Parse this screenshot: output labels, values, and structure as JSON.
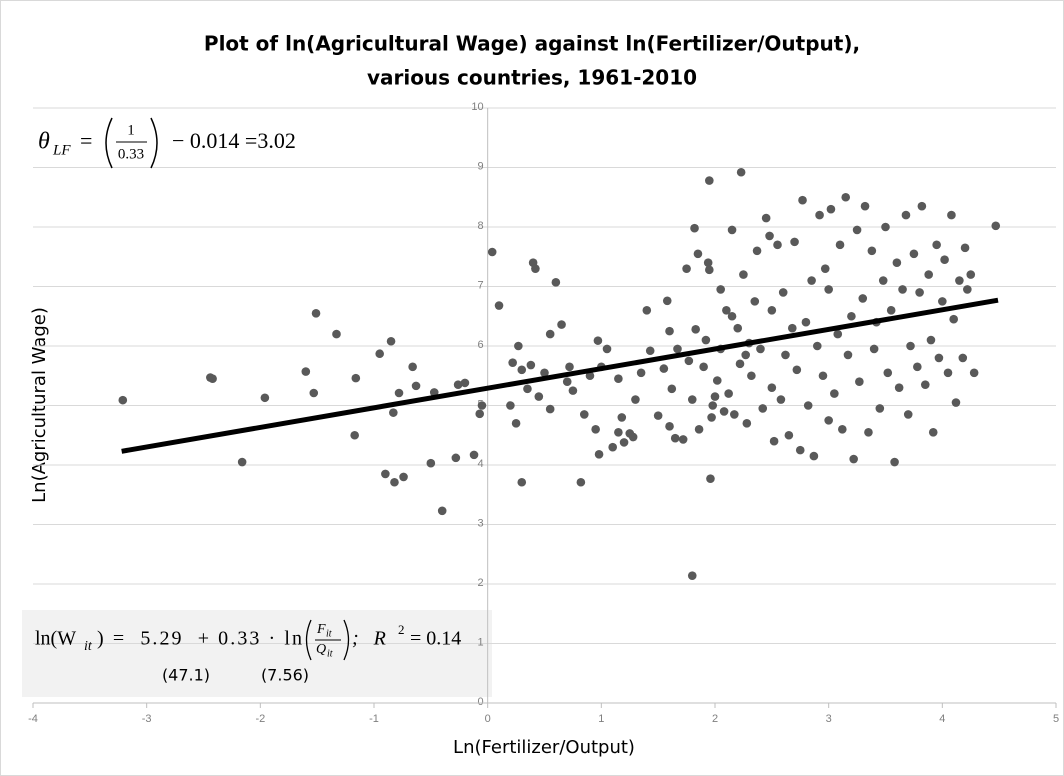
{
  "chart_data": {
    "type": "scatter",
    "title": [
      "Plot of ln(Agricultural Wage) against ln(Fertilizer/Output),",
      "various countries, 1961-2010"
    ],
    "x_label": "Ln(Fertilizer/Output)",
    "y_label": "Ln(Agricultural Wage)",
    "xlim": [
      -4,
      5
    ],
    "xticks": [
      -4,
      -3,
      -2,
      -1,
      0,
      1,
      2,
      3,
      4,
      5
    ],
    "ylim": [
      0,
      10
    ],
    "yticks": [
      0,
      1,
      2,
      3,
      4,
      5,
      6,
      7,
      8,
      9,
      10
    ],
    "grid": true,
    "series": [
      {
        "color": "#595959",
        "x": [
          -3.21,
          -2.44,
          -2.42,
          -2.16,
          -1.96,
          -1.6,
          -1.53,
          -1.51,
          -1.33,
          -1.16,
          -1.17,
          -0.95,
          -0.9,
          -0.85,
          -0.83,
          -0.82,
          -0.78,
          -0.74,
          -0.66,
          -0.63,
          -0.5,
          -0.47,
          -0.4,
          -0.28,
          -0.26,
          -0.2,
          -0.12,
          -0.07,
          -0.05,
          0.04,
          0.1,
          0.2,
          0.22,
          0.25,
          0.27,
          0.3,
          0.3,
          0.35,
          0.38,
          0.4,
          0.42,
          0.45,
          0.5,
          0.55,
          0.55,
          0.6,
          0.65,
          0.7,
          0.72,
          0.75,
          0.82,
          0.85,
          0.9,
          0.95,
          0.97,
          0.98,
          1.0,
          1.05,
          1.1,
          1.15,
          1.15,
          1.18,
          1.2,
          1.25,
          1.28,
          1.3,
          1.35,
          1.4,
          1.43,
          1.5,
          1.55,
          1.58,
          1.6,
          1.6,
          1.62,
          1.65,
          1.67,
          1.72,
          1.75,
          1.77,
          1.8,
          1.8,
          1.82,
          1.83,
          1.85,
          1.86,
          1.9,
          1.92,
          1.94,
          1.95,
          1.95,
          1.96,
          1.97,
          1.98,
          2.0,
          2.02,
          2.05,
          2.05,
          2.08,
          2.1,
          2.12,
          2.15,
          2.15,
          2.17,
          2.2,
          2.22,
          2.23,
          2.25,
          2.27,
          2.28,
          2.3,
          2.32,
          2.35,
          2.37,
          2.4,
          2.42,
          2.45,
          2.48,
          2.5,
          2.5,
          2.52,
          2.55,
          2.58,
          2.6,
          2.62,
          2.65,
          2.68,
          2.7,
          2.72,
          2.75,
          2.77,
          2.8,
          2.82,
          2.85,
          2.87,
          2.9,
          2.92,
          2.95,
          2.97,
          3.0,
          3.0,
          3.02,
          3.05,
          3.08,
          3.1,
          3.12,
          3.15,
          3.17,
          3.2,
          3.22,
          3.25,
          3.27,
          3.3,
          3.32,
          3.35,
          3.38,
          3.4,
          3.42,
          3.45,
          3.48,
          3.5,
          3.52,
          3.55,
          3.58,
          3.6,
          3.62,
          3.65,
          3.68,
          3.7,
          3.72,
          3.75,
          3.78,
          3.8,
          3.82,
          3.85,
          3.88,
          3.9,
          3.92,
          3.95,
          3.97,
          4.0,
          4.02,
          4.05,
          4.08,
          4.1,
          4.12,
          4.15,
          4.18,
          4.2,
          4.22,
          4.25,
          4.28,
          4.47
        ],
        "values": [
          5.09,
          5.47,
          5.45,
          4.05,
          5.13,
          5.57,
          5.21,
          6.55,
          6.2,
          5.46,
          4.5,
          5.87,
          3.85,
          6.08,
          4.88,
          3.71,
          5.21,
          3.8,
          5.65,
          5.33,
          4.03,
          5.22,
          3.23,
          4.12,
          5.35,
          5.38,
          4.17,
          4.86,
          5.0,
          7.58,
          6.68,
          5.0,
          5.72,
          4.7,
          6.0,
          3.71,
          5.6,
          5.28,
          5.68,
          7.4,
          7.3,
          5.15,
          5.55,
          6.2,
          4.94,
          7.07,
          6.36,
          5.4,
          5.65,
          5.25,
          3.71,
          4.85,
          5.5,
          4.6,
          6.09,
          4.18,
          5.65,
          5.95,
          4.3,
          4.55,
          5.45,
          4.8,
          4.38,
          4.53,
          4.47,
          5.1,
          5.55,
          6.6,
          5.92,
          4.83,
          5.62,
          6.76,
          6.25,
          4.65,
          5.28,
          4.45,
          5.95,
          4.43,
          7.3,
          5.75,
          2.14,
          5.1,
          7.98,
          6.28,
          7.55,
          4.6,
          5.65,
          6.1,
          7.4,
          7.28,
          8.78,
          3.77,
          4.8,
          5.0,
          5.15,
          5.42,
          5.95,
          6.95,
          4.9,
          6.6,
          5.2,
          7.95,
          6.5,
          4.85,
          6.3,
          5.7,
          8.92,
          7.2,
          5.85,
          4.7,
          6.05,
          5.5,
          6.75,
          7.6,
          5.95,
          4.95,
          8.15,
          7.85,
          6.6,
          5.3,
          4.4,
          7.7,
          5.1,
          6.9,
          5.85,
          4.5,
          6.3,
          7.75,
          5.6,
          4.25,
          8.45,
          6.4,
          5.0,
          7.1,
          4.15,
          6.0,
          8.2,
          5.5,
          7.3,
          4.75,
          6.95,
          8.3,
          5.2,
          6.2,
          7.7,
          4.6,
          8.5,
          5.85,
          6.5,
          4.1,
          7.95,
          5.4,
          6.8,
          8.35,
          4.55,
          7.6,
          5.95,
          6.4,
          4.95,
          7.1,
          8.0,
          5.55,
          6.6,
          4.05,
          7.4,
          5.3,
          6.95,
          8.2,
          4.85,
          6.0,
          7.55,
          5.65,
          6.9,
          8.35,
          5.35,
          7.2,
          6.1,
          4.55,
          7.7,
          5.8,
          6.75,
          7.45,
          5.55,
          8.2,
          6.45,
          5.05,
          7.1,
          5.8,
          7.65,
          6.95,
          7.2,
          5.55,
          8.02
        ]
      }
    ],
    "trendline": {
      "color": "#000000",
      "x": [
        -3.22,
        4.49
      ],
      "values": [
        4.23,
        6.77
      ]
    },
    "annotations": {
      "theta": {
        "symbol": "θ",
        "subscript": "LF",
        "equals": "=",
        "numerator": "1",
        "denominator": "0.33",
        "rest": "− 0.014 =3.02"
      },
      "equation": {
        "lhs": "ln(W",
        "lhs_sub": "it",
        "rhs": ") =  5.29  + 0.33 · ln",
        "numerator": "F",
        "numerator_sub": "it",
        "denominator": "Q",
        "denominator_sub": "it",
        "r2": ";   R",
        "r2_sup": "2",
        "r2_rest": " = 0.14",
        "t_stats": [
          "(47.1)",
          "(7.56)"
        ]
      }
    }
  }
}
